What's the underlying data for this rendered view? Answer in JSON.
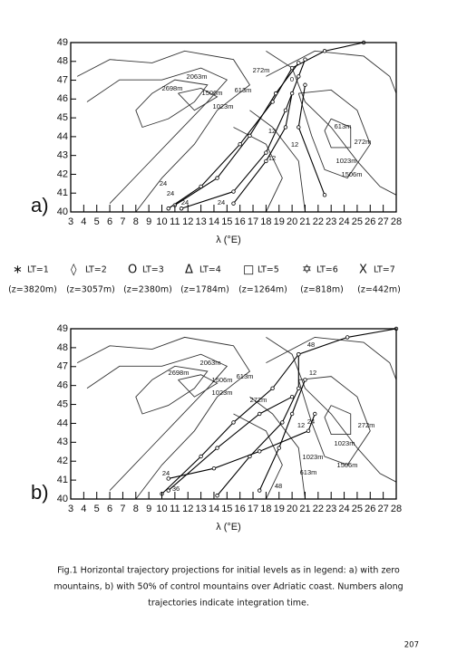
{
  "figures": [
    {
      "panel_label": "a)",
      "y_tick_labels": [
        49,
        48,
        47,
        46,
        45,
        44,
        43,
        42,
        41,
        40
      ],
      "x_tick_labels": [
        3,
        4,
        5,
        6,
        7,
        8,
        9,
        10,
        11,
        12,
        13,
        14,
        15,
        16,
        17,
        18,
        19,
        20,
        21,
        22,
        23,
        24,
        25,
        26,
        27,
        28
      ],
      "x_axis_label": "λ (°E)",
      "map_labels": [
        "2063m",
        "272m",
        "2698m",
        "1506m",
        "613m",
        "1023m",
        "613m",
        "272m",
        "1023m",
        "1506m",
        "24",
        "24",
        "24",
        "24",
        "12",
        "12",
        "12",
        "0"
      ]
    },
    {
      "panel_label": "b)",
      "y_tick_labels": [
        49,
        48,
        47,
        46,
        45,
        44,
        43,
        42,
        41,
        40
      ],
      "x_tick_labels": [
        3,
        4,
        5,
        6,
        7,
        8,
        9,
        10,
        11,
        12,
        13,
        14,
        15,
        16,
        17,
        18,
        19,
        20,
        21,
        22,
        23,
        24,
        25,
        26,
        27,
        28
      ],
      "x_axis_label": "λ (°E)",
      "map_labels": [
        "2063m",
        "2698m",
        "1506m",
        "613m",
        "1023m",
        "272m",
        "272m",
        "1023m",
        "1023m",
        "613m",
        "1506m",
        "24",
        "36",
        "48",
        "12",
        "12",
        "24",
        "48"
      ]
    }
  ],
  "legend": [
    {
      "symbol": "∗",
      "label": "LT=1",
      "height": "(z=3820m)"
    },
    {
      "symbol": "◊",
      "label": "LT=2",
      "height": "(z=3057m)"
    },
    {
      "symbol": "O",
      "label": "LT=3",
      "height": "(z=2380m)"
    },
    {
      "symbol": "Δ",
      "label": "LT=4",
      "height": "(z=1784m)"
    },
    {
      "symbol": "□",
      "label": "LT=5",
      "height": "(z=1264m)"
    },
    {
      "symbol": "✡",
      "label": "LT=6",
      "height": "(z=818m)"
    },
    {
      "symbol": "X",
      "label": "LT=7",
      "height": "(z=442m)"
    }
  ],
  "caption": [
    "Fig.1  Horizontal trajectory projections for initial levels as in legend: a) with zero",
    "mountains, b) with 50% of control mountains over Adriatic coast. Numbers along",
    "trajectories indicate integration time."
  ],
  "page_number": "207"
}
